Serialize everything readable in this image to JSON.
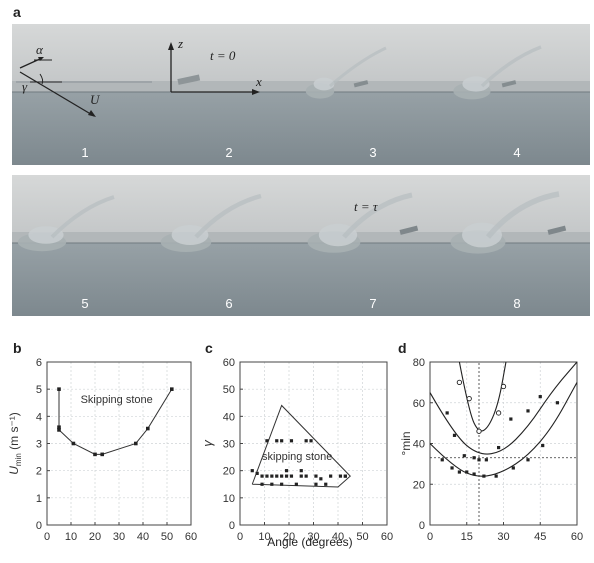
{
  "panels": {
    "a": {
      "letter": "a"
    },
    "b": {
      "letter": "b"
    },
    "c": {
      "letter": "c"
    },
    "d": {
      "letter": "d"
    }
  },
  "frames": [
    {
      "label": "1"
    },
    {
      "label": "2",
      "annotation": "t = 0",
      "axis_z": "z",
      "axis_x": "x"
    },
    {
      "label": "3"
    },
    {
      "label": "4"
    },
    {
      "label": "5"
    },
    {
      "label": "6"
    },
    {
      "label": "7",
      "annotation": "t = τ"
    },
    {
      "label": "8"
    }
  ],
  "frame1_symbols": {
    "alpha": "α",
    "gamma": "γ",
    "velocity": "U"
  },
  "xlabel_shared": "Angle (degrees)",
  "chart_data": [
    {
      "id": "b",
      "type": "line",
      "ylabel": "U",
      "ylabel_sub": "min",
      "ylabel_unit": " (m s⁻¹)",
      "annotation": "Skipping stone",
      "xlim": [
        0,
        60
      ],
      "ylim": [
        0,
        6
      ],
      "xticks": [
        0,
        10,
        20,
        30,
        40,
        50,
        60
      ],
      "yticks": [
        0,
        1,
        2,
        3,
        4,
        5,
        6
      ],
      "grid": true,
      "series": [
        {
          "x": [
            5,
            5,
            5,
            11,
            20,
            23,
            37,
            42,
            52
          ],
          "y": [
            5,
            3.6,
            3.5,
            3.0,
            2.6,
            2.6,
            3.0,
            3.55,
            5.0
          ]
        }
      ]
    },
    {
      "id": "c",
      "type": "scatter",
      "ylabel": "γ",
      "annotation": "skipping stone",
      "xlim": [
        0,
        60
      ],
      "ylim": [
        0,
        60
      ],
      "xticks": [
        0,
        10,
        20,
        30,
        40,
        50,
        60
      ],
      "yticks": [
        0,
        10,
        20,
        30,
        40,
        50,
        60
      ],
      "grid": true,
      "boundary": {
        "x": [
          5,
          17,
          45,
          40,
          5
        ],
        "y": [
          15,
          44,
          18,
          14,
          15
        ]
      },
      "points": {
        "x": [
          5,
          7,
          9,
          11,
          13,
          15,
          17,
          19,
          21,
          25,
          27,
          31,
          33,
          37,
          41,
          43,
          11,
          15,
          17,
          21,
          27,
          29,
          9,
          13,
          17,
          23,
          31,
          35,
          19,
          25,
          43
        ],
        "y": [
          20,
          19,
          18,
          18,
          18,
          18,
          18,
          18,
          18,
          18,
          18,
          18,
          17,
          18,
          18,
          18,
          31,
          31,
          31,
          31,
          31,
          31,
          15,
          15,
          15,
          15,
          15,
          15,
          20,
          20,
          18
        ]
      }
    },
    {
      "id": "d",
      "type": "scatter",
      "ylabel": "°min",
      "xlim": [
        0,
        60
      ],
      "ylim": [
        0,
        80
      ],
      "xticks": [
        0,
        15,
        30,
        45,
        60
      ],
      "yticks": [
        0,
        20,
        40,
        60,
        80
      ],
      "grid": true,
      "vlines": [
        20
      ],
      "hlines": [
        33
      ],
      "series": [
        {
          "marker": "open",
          "x": [
            12,
            16,
            20,
            28,
            30
          ],
          "y": [
            70,
            62,
            46,
            55,
            68
          ]
        },
        {
          "marker": "filled",
          "x": [
            7,
            10,
            14,
            18,
            20,
            23,
            28,
            33,
            40,
            45,
            52
          ],
          "y": [
            55,
            44,
            34,
            33,
            32,
            32,
            38,
            52,
            56,
            63,
            60
          ]
        },
        {
          "marker": "filled",
          "x": [
            5,
            9,
            12,
            15,
            18,
            22,
            27,
            34,
            40,
            46
          ],
          "y": [
            32,
            28,
            26,
            26,
            25,
            24,
            24,
            28,
            32,
            39
          ]
        }
      ],
      "curves": [
        {
          "x": [
            12,
            16,
            20,
            24,
            28,
            31
          ],
          "y": [
            80,
            55,
            45,
            48,
            60,
            80
          ]
        },
        {
          "x": [
            0,
            10,
            20,
            30,
            40,
            50,
            60
          ],
          "y": [
            65,
            44,
            34,
            36,
            48,
            66,
            80
          ]
        },
        {
          "x": [
            0,
            10,
            20,
            30,
            40,
            50,
            60
          ],
          "y": [
            40,
            28,
            23,
            26,
            34,
            48,
            70
          ]
        }
      ]
    }
  ]
}
